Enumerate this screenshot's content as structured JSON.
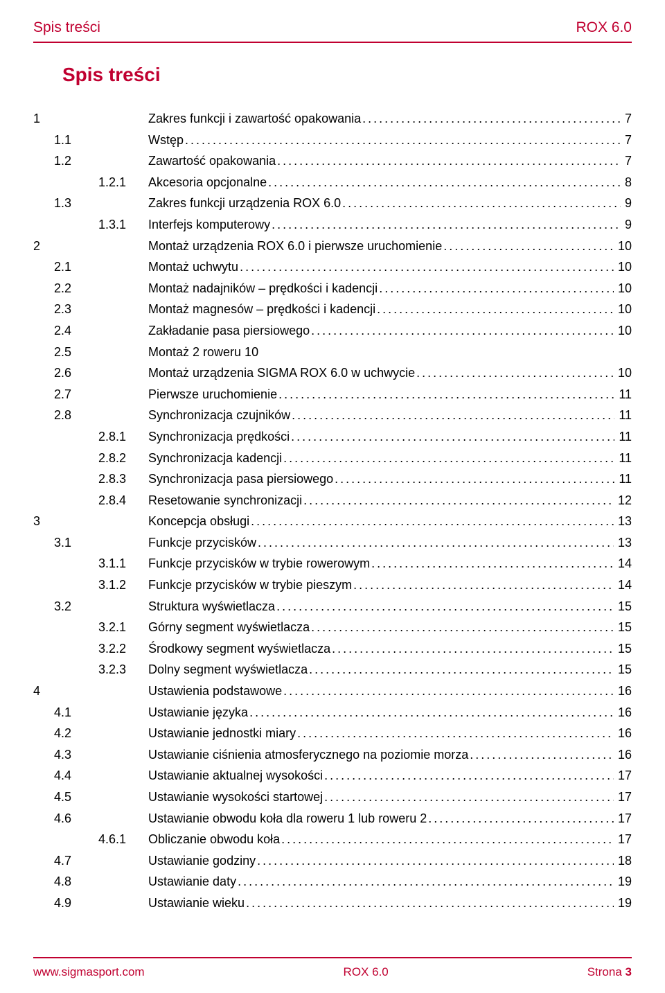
{
  "colors": {
    "accent": "#c00030",
    "text": "#000000",
    "bg": "#ffffff"
  },
  "header": {
    "left": "Spis treści",
    "right": "ROX 6.0"
  },
  "title": "Spis treści",
  "footer": {
    "left": "www.sigmasport.com",
    "center": "ROX 6.0",
    "right_label": "Strona",
    "right_page": "3"
  },
  "dots_fill": "....................................................................................................................................................................................................",
  "toc": [
    {
      "a": "1",
      "b": "",
      "c": "",
      "t": "Zakres funkcji i zawartość opakowania",
      "p": "7"
    },
    {
      "a": "",
      "b": "1.1",
      "c": "",
      "t": "Wstęp",
      "p": "7"
    },
    {
      "a": "",
      "b": "1.2",
      "c": "",
      "t": "Zawartość opakowania",
      "p": "7"
    },
    {
      "a": "",
      "b": "",
      "c": "1.2.1",
      "t": "Akcesoria opcjonalne",
      "p": "8"
    },
    {
      "a": "",
      "b": "1.3",
      "c": "",
      "t": "Zakres funkcji urządzenia ROX 6.0",
      "p": "9"
    },
    {
      "a": "",
      "b": "",
      "c": "1.3.1",
      "t": "Interfejs komputerowy",
      "p": "9"
    },
    {
      "a": "2",
      "b": "",
      "c": "",
      "t": "Montaż urządzenia ROX 6.0 i pierwsze uruchomienie",
      "p": "10"
    },
    {
      "a": "",
      "b": "2.1",
      "c": "",
      "t": "Montaż uchwytu",
      "p": "10"
    },
    {
      "a": "",
      "b": "2.2",
      "c": "",
      "t": "Montaż nadajników – prędkości i kadencji",
      "p": "10"
    },
    {
      "a": "",
      "b": "2.3",
      "c": "",
      "t": "Montaż magnesów – prędkości i kadencji",
      "p": "10"
    },
    {
      "a": "",
      "b": "2.4",
      "c": "",
      "t": "Zakładanie pasa piersiowego",
      "p": "10"
    },
    {
      "a": "",
      "b": "2.5",
      "c": "",
      "t": "Montaż 2 roweru 10",
      "p": "",
      "nodots": true
    },
    {
      "a": "",
      "b": "2.6",
      "c": "",
      "t": "Montaż urządzenia SIGMA ROX 6.0 w uchwycie",
      "p": "10"
    },
    {
      "a": "",
      "b": "2.7",
      "c": "",
      "t": "Pierwsze uruchomienie",
      "p": "11"
    },
    {
      "a": "",
      "b": "2.8",
      "c": "",
      "t": "Synchronizacja czujników",
      "p": "11"
    },
    {
      "a": "",
      "b": "",
      "c": "2.8.1",
      "t": "Synchronizacja prędkości",
      "p": "11"
    },
    {
      "a": "",
      "b": "",
      "c": "2.8.2",
      "t": "Synchronizacja kadencji",
      "p": "11"
    },
    {
      "a": "",
      "b": "",
      "c": "2.8.3",
      "t": "Synchronizacja pasa piersiowego",
      "p": "11"
    },
    {
      "a": "",
      "b": "",
      "c": "2.8.4",
      "t": "Resetowanie synchronizacji",
      "p": "12"
    },
    {
      "a": "3",
      "b": "",
      "c": "",
      "t": "Koncepcja obsługi",
      "p": "13"
    },
    {
      "a": "",
      "b": "3.1",
      "c": "",
      "t": "Funkcje przycisków",
      "p": "13"
    },
    {
      "a": "",
      "b": "",
      "c": "3.1.1",
      "t": "Funkcje przycisków w trybie rowerowym",
      "p": "14"
    },
    {
      "a": "",
      "b": "",
      "c": "3.1.2",
      "t": "Funkcje przycisków w trybie pieszym",
      "p": "14"
    },
    {
      "a": "",
      "b": "3.2",
      "c": "",
      "t": "Struktura wyświetlacza",
      "p": "15"
    },
    {
      "a": "",
      "b": "",
      "c": "3.2.1",
      "t": "Górny segment wyświetlacza",
      "p": "15"
    },
    {
      "a": "",
      "b": "",
      "c": "3.2.2",
      "t": "Środkowy segment wyświetlacza",
      "p": "15"
    },
    {
      "a": "",
      "b": "",
      "c": "3.2.3",
      "t": "Dolny segment wyświetlacza",
      "p": "15"
    },
    {
      "a": "4",
      "b": "",
      "c": "",
      "t": "Ustawienia podstawowe",
      "p": "16"
    },
    {
      "a": "",
      "b": "4.1",
      "c": "",
      "t": "Ustawianie języka",
      "p": "16"
    },
    {
      "a": "",
      "b": "4.2",
      "c": "",
      "t": "Ustawianie jednostki miary",
      "p": "16"
    },
    {
      "a": "",
      "b": "4.3",
      "c": "",
      "t": "Ustawianie ciśnienia atmosferycznego na poziomie morza",
      "p": "16"
    },
    {
      "a": "",
      "b": "4.4",
      "c": "",
      "t": "Ustawianie aktualnej wysokości",
      "p": "17"
    },
    {
      "a": "",
      "b": "4.5",
      "c": "",
      "t": "Ustawianie wysokości startowej",
      "p": "17"
    },
    {
      "a": "",
      "b": "4.6",
      "c": "",
      "t": "Ustawianie obwodu koła dla roweru 1 lub roweru 2",
      "p": "17"
    },
    {
      "a": "",
      "b": "",
      "c": "4.6.1",
      "t": "Obliczanie obwodu koła",
      "p": "17"
    },
    {
      "a": "",
      "b": "4.7",
      "c": "",
      "t": "Ustawianie godziny",
      "p": "18"
    },
    {
      "a": "",
      "b": "4.8",
      "c": "",
      "t": "Ustawianie daty",
      "p": "19"
    },
    {
      "a": "",
      "b": "4.9",
      "c": "",
      "t": "Ustawianie wieku",
      "p": "19"
    }
  ]
}
